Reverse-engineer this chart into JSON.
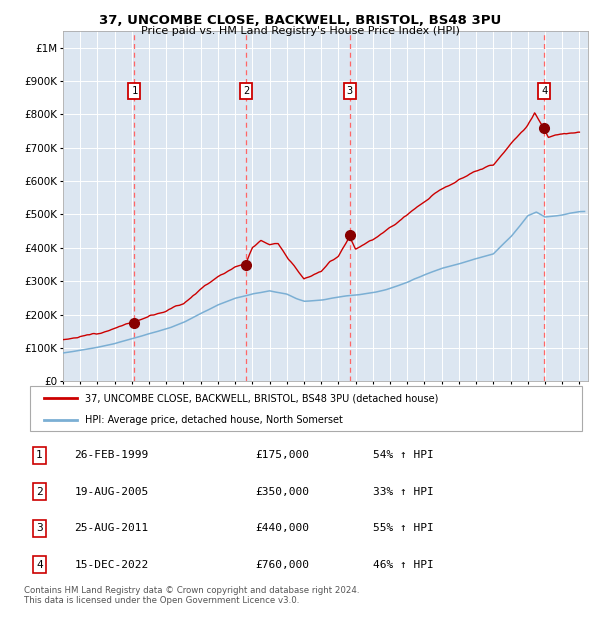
{
  "title_line1": "37, UNCOMBE CLOSE, BACKWELL, BRISTOL, BS48 3PU",
  "title_line2": "Price paid vs. HM Land Registry's House Price Index (HPI)",
  "xlim": [
    1995.0,
    2025.5
  ],
  "ylim": [
    0,
    1050000
  ],
  "yticks": [
    0,
    100000,
    200000,
    300000,
    400000,
    500000,
    600000,
    700000,
    800000,
    900000,
    1000000
  ],
  "ytick_labels": [
    "£0",
    "£100K",
    "£200K",
    "£300K",
    "£400K",
    "£500K",
    "£600K",
    "£700K",
    "£800K",
    "£900K",
    "£1M"
  ],
  "background_color": "#dce6f1",
  "grid_color": "#ffffff",
  "sales": [
    {
      "num": 1,
      "year": 1999.15,
      "price": 175000
    },
    {
      "num": 2,
      "year": 2005.63,
      "price": 350000
    },
    {
      "num": 3,
      "year": 2011.65,
      "price": 440000
    },
    {
      "num": 4,
      "year": 2022.96,
      "price": 760000
    }
  ],
  "hpi_line_color": "#7bafd4",
  "sale_line_color": "#cc0000",
  "sale_marker_color": "#880000",
  "dashed_line_color": "#ff6666",
  "legend_label_red": "37, UNCOMBE CLOSE, BACKWELL, BRISTOL, BS48 3PU (detached house)",
  "legend_label_blue": "HPI: Average price, detached house, North Somerset",
  "footer": "Contains HM Land Registry data © Crown copyright and database right 2024.\nThis data is licensed under the Open Government Licence v3.0.",
  "table_rows": [
    [
      "1",
      "26-FEB-1999",
      "£175,000",
      "54% ↑ HPI"
    ],
    [
      "2",
      "19-AUG-2005",
      "£350,000",
      "33% ↑ HPI"
    ],
    [
      "3",
      "25-AUG-2011",
      "£440,000",
      "55% ↑ HPI"
    ],
    [
      "4",
      "15-DEC-2022",
      "£760,000",
      "46% ↑ HPI"
    ]
  ]
}
